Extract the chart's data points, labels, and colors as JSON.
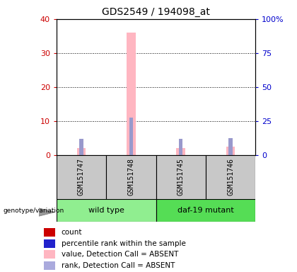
{
  "title": "GDS2549 / 194098_at",
  "samples": [
    "GSM151747",
    "GSM151748",
    "GSM151745",
    "GSM151746"
  ],
  "group_info": [
    {
      "label": "wild type",
      "start": 0,
      "end": 1,
      "color": "#90EE90"
    },
    {
      "label": "daf-19 mutant",
      "start": 2,
      "end": 3,
      "color": "#55DD55"
    }
  ],
  "pink_values": [
    2.0,
    36.0,
    2.0,
    2.5
  ],
  "blue_values": [
    4.8,
    11.0,
    4.8,
    5.0
  ],
  "pink_color": "#FFB6C1",
  "blue_color": "#9999CC",
  "red_color": "#CC0000",
  "dark_blue_color": "#2222CC",
  "bg_color": "#FFFFFF",
  "sample_box_color": "#C8C8C8",
  "legend_items": [
    {
      "label": "count",
      "color": "#CC0000"
    },
    {
      "label": "percentile rank within the sample",
      "color": "#2222CC"
    },
    {
      "label": "value, Detection Call = ABSENT",
      "color": "#FFB6C1"
    },
    {
      "label": "rank, Detection Call = ABSENT",
      "color": "#AAAADD"
    }
  ],
  "genotype_label": "genotype/variation",
  "ylim_left": [
    0,
    40
  ],
  "ylim_right": [
    0,
    100
  ],
  "yticks_left": [
    0,
    10,
    20,
    30,
    40
  ],
  "yticks_right": [
    0,
    25,
    50,
    75,
    100
  ],
  "ytick_labels_left": [
    "0",
    "10",
    "20",
    "30",
    "40"
  ],
  "ytick_labels_right": [
    "0",
    "25",
    "50",
    "75",
    "100%"
  ],
  "left_tick_color": "#CC0000",
  "right_tick_color": "#0000CC",
  "title_fontsize": 10,
  "tick_fontsize": 8,
  "sample_fontsize": 7,
  "group_fontsize": 8,
  "legend_fontsize": 7.5
}
